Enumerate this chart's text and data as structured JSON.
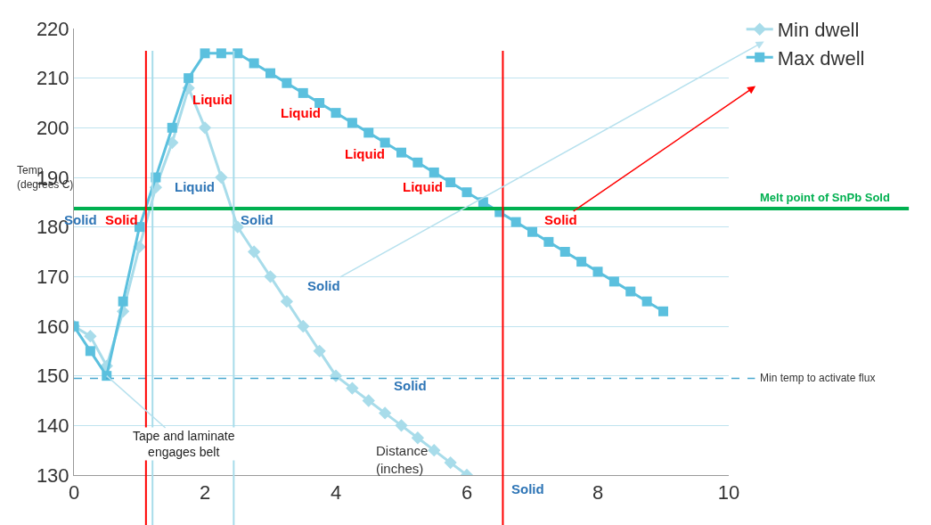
{
  "chart_data": {
    "type": "line",
    "xlabel": "Distance\n(inches)",
    "ylabel": "Temp\n(degrees C)",
    "xlim": [
      0,
      10
    ],
    "xticks": [
      0,
      2,
      4,
      6,
      8,
      10
    ],
    "ylim": [
      130,
      220
    ],
    "yticks": [
      130,
      140,
      150,
      160,
      170,
      180,
      190,
      200,
      210,
      220
    ],
    "grid": "y",
    "legend": "top right",
    "line_style": "solid",
    "series": [
      {
        "name": "Min dwell",
        "color": "#a8dcea",
        "marker": "diamond",
        "x": [
          0,
          0.25,
          0.5,
          0.75,
          1.0,
          1.25,
          1.5,
          1.75,
          2.0,
          2.25,
          2.5,
          2.75,
          3.0,
          3.25,
          3.5,
          3.75,
          4.0,
          4.25,
          4.5,
          4.75,
          5.0,
          5.25,
          5.5,
          5.75,
          6.0
        ],
        "values": [
          160,
          158,
          152,
          163,
          176,
          188,
          197,
          208,
          200,
          190,
          180,
          175,
          170,
          165,
          160,
          155,
          150,
          147.5,
          145,
          142.5,
          140,
          137.5,
          135,
          132.5,
          130
        ]
      },
      {
        "name": "Max dwell",
        "color": "#5bc0de",
        "marker": "square",
        "x": [
          0,
          0.25,
          0.5,
          0.75,
          1.0,
          1.25,
          1.5,
          1.75,
          2.0,
          2.25,
          2.5,
          2.75,
          3.0,
          3.25,
          3.5,
          3.75,
          4.0,
          4.25,
          4.5,
          4.75,
          5.0,
          5.25,
          5.5,
          5.75,
          6.0,
          6.25,
          6.5,
          6.75,
          7.0,
          7.25,
          7.5,
          7.75,
          8.0,
          8.25,
          8.5,
          8.75,
          9.0
        ],
        "values": [
          160,
          155,
          150,
          165,
          180,
          190,
          200,
          210,
          215,
          215,
          215,
          213,
          211,
          209,
          207,
          205,
          203,
          201,
          199,
          197,
          195,
          193,
          191,
          189,
          187,
          185,
          183,
          181,
          179,
          177,
          175,
          173,
          171,
          169,
          167,
          165,
          163
        ]
      }
    ],
    "ref_lines": [
      {
        "axis": "y",
        "value": 183.7,
        "label": "Melt point of SnPb Sold",
        "color": "#00b050",
        "line_style": "solid"
      },
      {
        "axis": "y",
        "value": 149.5,
        "label": "Min temp to activate flux",
        "color": "#4aa8d0",
        "line_style": "dashed"
      },
      {
        "axis": "x",
        "value": 1.1,
        "color": "#ff0000",
        "line_style": "solid"
      },
      {
        "axis": "x",
        "value": 1.2,
        "color": "#a8dcea",
        "line_style": "solid"
      },
      {
        "axis": "x",
        "value": 2.44,
        "color": "#a8dcea",
        "line_style": "solid"
      },
      {
        "axis": "x",
        "value": 6.55,
        "color": "#ff0000",
        "line_style": "solid"
      }
    ],
    "annotations": [
      "Liquid",
      "Liquid",
      "Liquid",
      "Liquid",
      "Liquid",
      "Solid",
      "Solid",
      "Solid",
      "Solid",
      "Solid",
      "Solid",
      "Solid",
      {
        "text": "Tape and laminate\nengages belt",
        "x": 0.5,
        "y": 150
      }
    ]
  }
}
